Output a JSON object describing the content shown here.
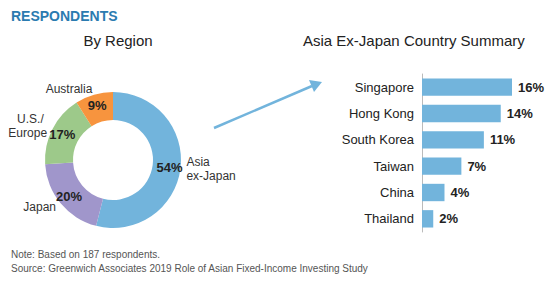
{
  "title": "RESPONDENTS",
  "notes": [
    "Note: Based on 187 respondents.",
    "Source: Greenwich Associates 2019 Role of Asian Fixed-Income Investing Study"
  ],
  "chart_data": [
    {
      "type": "pie",
      "title": "By Region",
      "categories": [
        "Asia ex-Japan",
        "Japan",
        "U.S./ Europe",
        "Australia"
      ],
      "values": [
        54,
        20,
        17,
        9
      ],
      "value_labels": [
        "54%",
        "20%",
        "17%",
        "9%"
      ],
      "colors": [
        "#72b4dc",
        "#a096cb",
        "#9dc98a",
        "#f7943e"
      ],
      "data_labels": true
    },
    {
      "type": "bar",
      "title": "Asia Ex-Japan Country Summary",
      "orientation": "horizontal",
      "categories": [
        "Singapore",
        "Hong Kong",
        "South Korea",
        "Taiwan",
        "China",
        "Thailand"
      ],
      "values": [
        16,
        14,
        11,
        7,
        4,
        2
      ],
      "value_labels": [
        "16%",
        "14%",
        "11%",
        "7%",
        "4%",
        "2%"
      ],
      "color": "#72b4dc",
      "xlim": [
        0,
        16
      ],
      "data_labels": true,
      "tick_labels": "y",
      "grid": false
    }
  ]
}
